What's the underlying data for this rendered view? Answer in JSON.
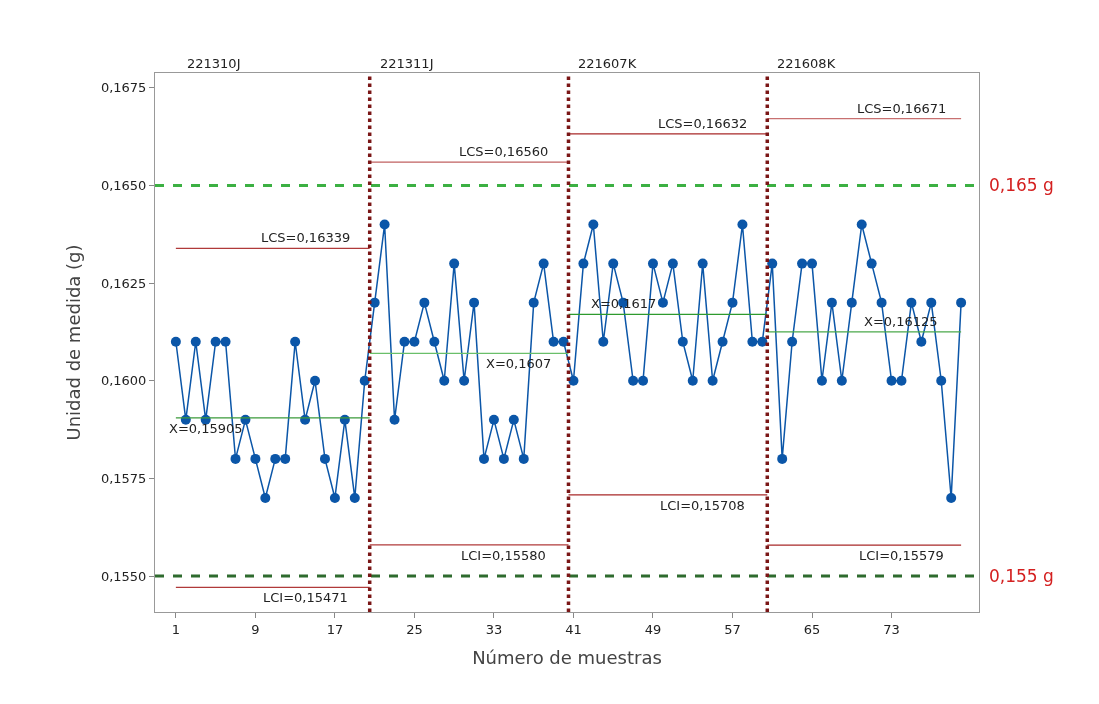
{
  "chart_data": {
    "type": "line",
    "xlabel": "Número de muestras",
    "ylabel": "Unidad de medida (g)",
    "xlim": [
      -1.1,
      81.8
    ],
    "xticks": [
      1,
      9,
      17,
      25,
      33,
      41,
      49,
      57,
      65,
      73
    ],
    "ylim": [
      0.15408,
      0.16788
    ],
    "yticks": [
      {
        "value": 0.155,
        "label": "0,1550"
      },
      {
        "value": 0.1575,
        "label": "0,1575"
      },
      {
        "value": 0.16,
        "label": "0,1600"
      },
      {
        "value": 0.1625,
        "label": "0,1625"
      },
      {
        "value": 0.165,
        "label": "0,1650"
      },
      {
        "value": 0.1675,
        "label": "0,1675"
      }
    ],
    "marker": "circle",
    "line_style": "solid",
    "series": [
      {
        "color": "#0b56a8",
        "x": [
          1,
          2,
          3,
          4,
          5,
          6,
          7,
          8,
          9,
          10,
          11,
          12,
          13,
          14,
          15,
          16,
          17,
          18,
          19,
          20,
          21,
          22,
          23,
          24,
          25,
          26,
          27,
          28,
          29,
          30,
          31,
          32,
          33,
          34,
          35,
          36,
          37,
          38,
          39,
          40,
          41,
          42,
          43,
          44,
          45,
          46,
          47,
          48,
          49,
          50,
          51,
          52,
          53,
          54,
          55,
          56,
          57,
          58,
          59,
          60,
          61,
          62,
          63,
          64,
          65,
          66,
          67,
          68,
          69,
          70,
          71,
          72,
          73,
          74,
          75,
          76,
          77,
          78,
          79,
          80
        ],
        "values": [
          0.161,
          0.159,
          0.161,
          0.159,
          0.161,
          0.161,
          0.158,
          0.159,
          0.158,
          0.157,
          0.158,
          0.158,
          0.161,
          0.159,
          0.16,
          0.158,
          0.157,
          0.159,
          0.157,
          0.16,
          0.162,
          0.164,
          0.159,
          0.161,
          0.161,
          0.162,
          0.161,
          0.16,
          0.163,
          0.16,
          0.162,
          0.158,
          0.159,
          0.158,
          0.159,
          0.158,
          0.162,
          0.163,
          0.161,
          0.161,
          0.16,
          0.163,
          0.164,
          0.161,
          0.163,
          0.162,
          0.16,
          0.16,
          0.163,
          0.162,
          0.163,
          0.161,
          0.16,
          0.163,
          0.16,
          0.161,
          0.162,
          0.164,
          0.161,
          0.161,
          0.163,
          0.158,
          0.161,
          0.163,
          0.163,
          0.16,
          0.162,
          0.16,
          0.162,
          0.164,
          0.163,
          0.162,
          0.16,
          0.16,
          0.162,
          0.161,
          0.162,
          0.16,
          0.157,
          0.162
        ]
      },
      {
        "color": "#b03a3a",
        "marker": "none",
        "x": [
          1,
          20.5
        ],
        "values": [
          0.16339,
          0.16339
        ]
      },
      {
        "color": "#3a9a3a",
        "marker": "none",
        "x": [
          1,
          20.5
        ],
        "values": [
          0.15905,
          0.15905
        ]
      },
      {
        "color": "#b03a3a",
        "marker": "none",
        "x": [
          1,
          20.5
        ],
        "values": [
          0.15471,
          0.15471
        ]
      },
      {
        "color": "#c06060",
        "marker": "none",
        "x": [
          20.5,
          40.5
        ],
        "values": [
          0.1656,
          0.1656
        ]
      },
      {
        "color": "#6abf6a",
        "marker": "none",
        "x": [
          20.5,
          40.5
        ],
        "values": [
          0.1607,
          0.1607
        ]
      },
      {
        "color": "#b03a3a",
        "marker": "none",
        "x": [
          20.5,
          40.5
        ],
        "values": [
          0.1558,
          0.1558
        ]
      },
      {
        "color": "#a82828",
        "marker": "none",
        "x": [
          40.5,
          60.5
        ],
        "values": [
          0.16632,
          0.16632
        ]
      },
      {
        "color": "#2e9a2e",
        "marker": "none",
        "x": [
          40.5,
          60.5
        ],
        "values": [
          0.1617,
          0.1617
        ]
      },
      {
        "color": "#a82828",
        "marker": "none",
        "x": [
          40.5,
          60.5
        ],
        "values": [
          0.15708,
          0.15708
        ]
      },
      {
        "color": "#c87070",
        "marker": "none",
        "x": [
          60.5,
          80
        ],
        "values": [
          0.16671,
          0.16671
        ]
      },
      {
        "color": "#4aa84a",
        "marker": "none",
        "x": [
          60.5,
          80
        ],
        "values": [
          0.16125,
          0.16125
        ]
      },
      {
        "color": "#a82828",
        "marker": "none",
        "x": [
          60.5,
          80
        ],
        "values": [
          0.15579,
          0.15579
        ]
      }
    ],
    "ref_lines": [
      {
        "axis": "y",
        "value": 0.165,
        "label": "0,165 g",
        "color": "#3cb043",
        "line_style": "dashed"
      },
      {
        "axis": "y",
        "value": 0.155,
        "label": "0,155 g",
        "color": "#2e6b2e",
        "line_style": "dashed"
      },
      {
        "axis": "x",
        "value": 20.5,
        "color": "#7a1616",
        "line_style": "dotted"
      },
      {
        "axis": "x",
        "value": 40.5,
        "color": "#7a1616",
        "line_style": "dotted"
      },
      {
        "axis": "x",
        "value": 60.5,
        "color": "#7a1616",
        "line_style": "dotted"
      }
    ],
    "annotations": [
      "221310J",
      "221311J",
      "221607K",
      "221608K",
      {
        "text": "LCS=0,16339",
        "x": 14,
        "y": 0.16339
      },
      {
        "text": "X=0,15905",
        "x": 4,
        "y": 0.15905
      },
      {
        "text": "LCI=0,15471",
        "x": 14,
        "y": 0.15471
      },
      {
        "text": "LCS=0,16560",
        "x": 34,
        "y": 0.1656
      },
      {
        "text": "X=0,1607",
        "x": 35.5,
        "y": 0.1607
      },
      {
        "text": "LCI=0,15580",
        "x": 34,
        "y": 0.1558
      },
      {
        "text": "LCS=0,16632",
        "x": 54,
        "y": 0.16632
      },
      {
        "text": "X=0,1617",
        "x": 46,
        "y": 0.1617
      },
      {
        "text": "LCI=0,15708",
        "x": 54,
        "y": 0.15708
      },
      {
        "text": "LCS=0,16671",
        "x": 74,
        "y": 0.16671
      },
      {
        "text": "X=0,16125",
        "x": 74,
        "y": 0.16125
      },
      {
        "text": "LCI=0,15579",
        "x": 74,
        "y": 0.15579
      }
    ]
  }
}
